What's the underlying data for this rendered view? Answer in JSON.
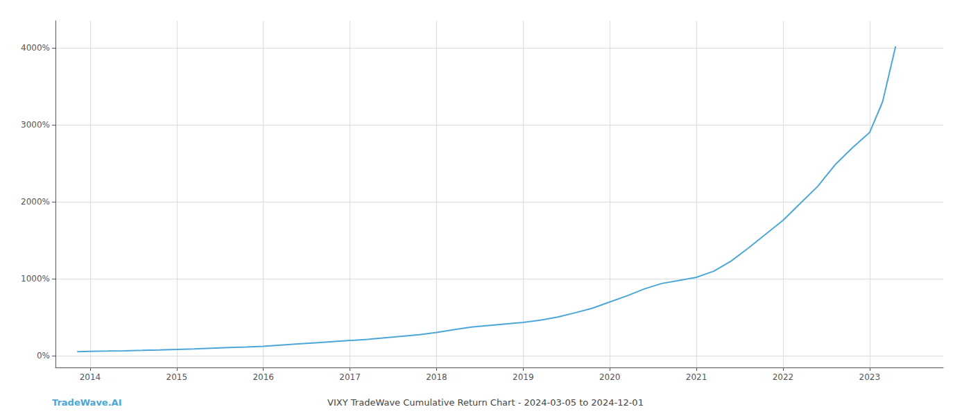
{
  "chart_data": {
    "type": "line",
    "title": "VIXY TradeWave Cumulative Return Chart - 2024-03-05 to 2024-12-01",
    "annotations": [
      "TradeWave.AI"
    ],
    "color": "#4da6d8",
    "grid": true,
    "x": [
      2013.85,
      2014.0,
      2014.2,
      2014.4,
      2014.6,
      2014.8,
      2015.0,
      2015.2,
      2015.4,
      2015.6,
      2015.8,
      2016.0,
      2016.2,
      2016.4,
      2016.6,
      2016.8,
      2017.0,
      2017.2,
      2017.4,
      2017.6,
      2017.8,
      2018.0,
      2018.2,
      2018.4,
      2018.6,
      2018.8,
      2019.0,
      2019.2,
      2019.4,
      2019.6,
      2019.8,
      2020.0,
      2020.2,
      2020.4,
      2020.6,
      2020.8,
      2021.0,
      2021.2,
      2021.4,
      2021.6,
      2021.8,
      2022.0,
      2022.2,
      2022.4,
      2022.6,
      2022.8,
      2023.0,
      2023.15,
      2023.3
    ],
    "values": [
      55,
      60,
      63,
      67,
      72,
      78,
      85,
      90,
      100,
      108,
      115,
      125,
      140,
      155,
      170,
      185,
      200,
      215,
      235,
      255,
      275,
      305,
      340,
      375,
      395,
      415,
      435,
      465,
      505,
      560,
      620,
      700,
      780,
      870,
      940,
      980,
      1020,
      1100,
      1230,
      1400,
      1580,
      1760,
      1980,
      2200,
      2480,
      2700,
      2900,
      3300,
      4020
    ],
    "xlim": [
      2013.6,
      2023.85
    ],
    "xticks": [
      2014,
      2015,
      2016,
      2017,
      2018,
      2019,
      2020,
      2021,
      2022,
      2023
    ],
    "ylim": [
      -150,
      4350
    ],
    "yticks": [
      {
        "value": 0,
        "label": "0%"
      },
      {
        "value": 1000,
        "label": "1000%"
      },
      {
        "value": 2000,
        "label": "2000%"
      },
      {
        "value": 3000,
        "label": "3000%"
      },
      {
        "value": 4000,
        "label": "4000%"
      }
    ]
  }
}
